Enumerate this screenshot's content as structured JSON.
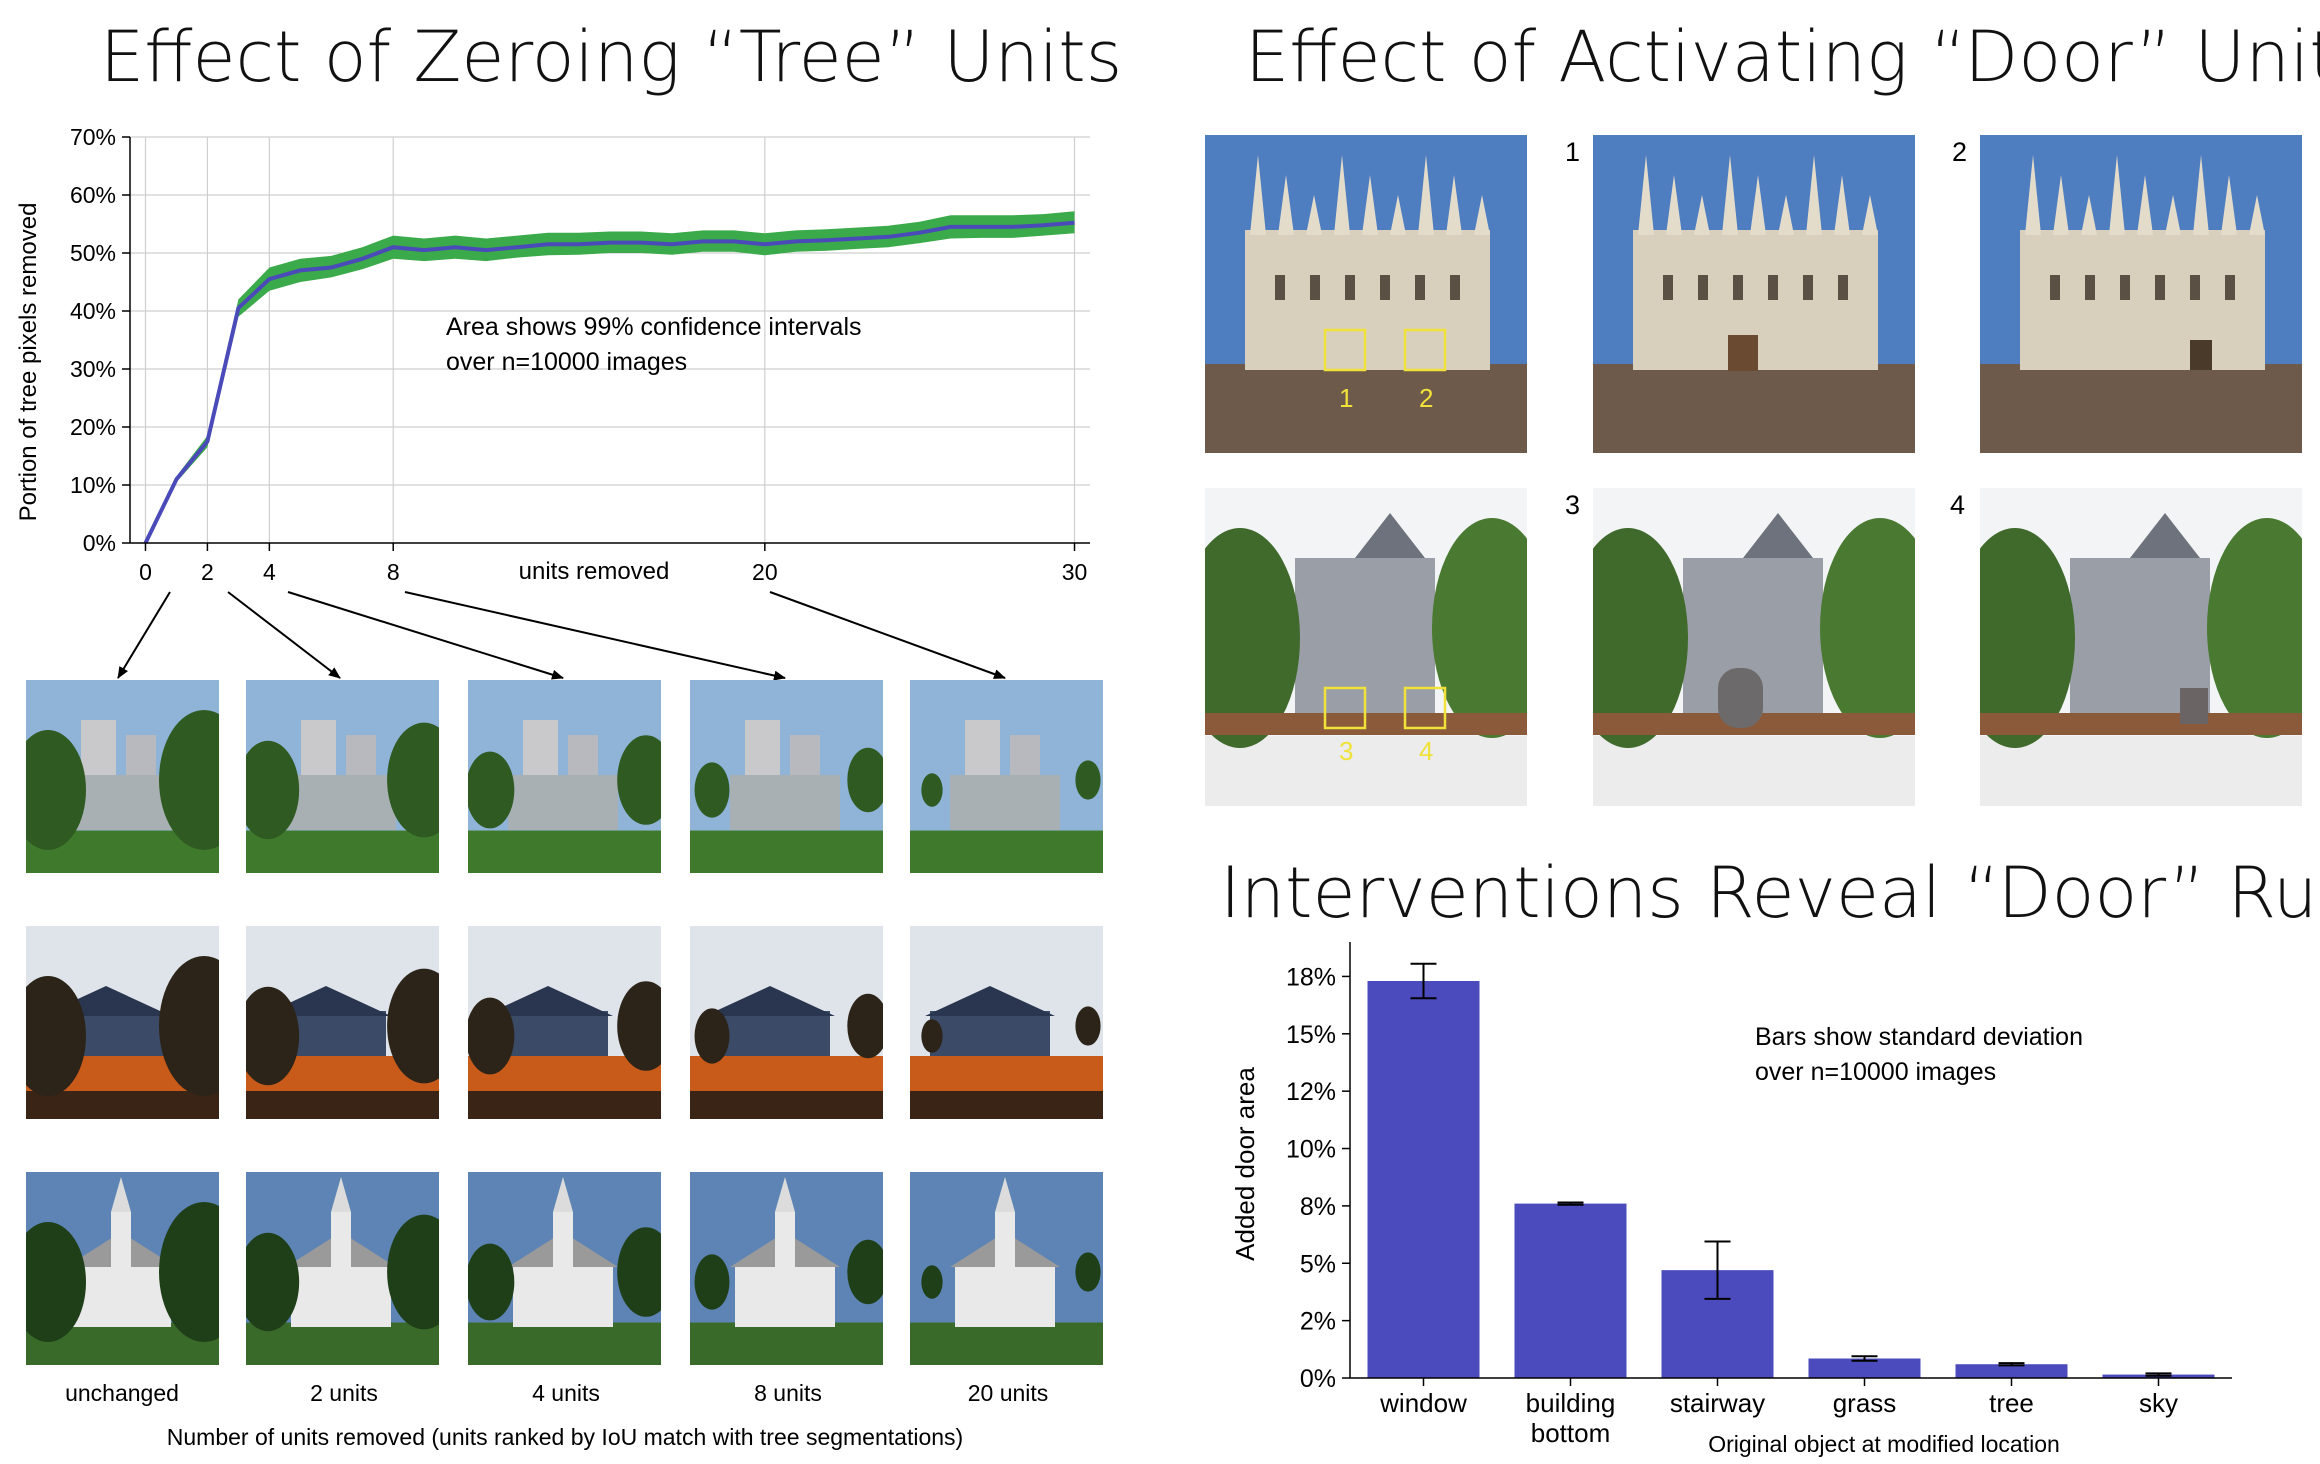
{
  "titles": {
    "left": "Effect of Zeroing “Tree” Units",
    "right": "Effect of Activating “Door” Units",
    "bar": "Interventions Reveal “Door” Rules"
  },
  "line_chart": {
    "ylabel": "Portion of tree pixels removed",
    "xlabel": "units removed",
    "annotation": [
      "Area shows 99% confidence intervals",
      "over n=10000 images"
    ],
    "yticks": [
      "0%",
      "10%",
      "20%",
      "30%",
      "40%",
      "50%",
      "60%",
      "70%"
    ],
    "xticks": [
      "0",
      "2",
      "4",
      "8",
      "20",
      "30"
    ]
  },
  "bar_chart": {
    "ylabel": "Added door area",
    "xlabel": "Original object at modified location",
    "annotation": [
      "Bars show standard deviation",
      "over n=10000 images"
    ],
    "yticks": [
      "0%",
      "2%",
      "5%",
      "8%",
      "10%",
      "12%",
      "15%",
      "18%"
    ],
    "categories": [
      "window",
      "building bottom",
      "stairway",
      "grass",
      "tree",
      "sky"
    ]
  },
  "thumbnails": {
    "captions": [
      "unchanged",
      "2 units",
      "4 units",
      "8 units",
      "20 units"
    ],
    "footer": "Number of units removed (units ranked by IoU match with tree segmentations)"
  },
  "door_panel": {
    "labels": [
      "1",
      "2",
      "3",
      "4"
    ]
  },
  "colors": {
    "line": "#4a4ab8",
    "band": "#3aaa4a",
    "bar": "#4b4bbd"
  },
  "chart_data": [
    {
      "type": "line",
      "title": "Effect of Zeroing “Tree” Units",
      "xlabel": "units removed",
      "ylabel": "Portion of tree pixels removed",
      "xlim": [
        -0.5,
        30.5
      ],
      "ylim": [
        0,
        0.7
      ],
      "grid": true,
      "series": [
        {
          "name": "",
          "x": [
            0,
            1,
            2,
            3,
            4,
            5,
            6,
            7,
            8,
            9,
            10,
            11,
            12,
            13,
            14,
            15,
            16,
            17,
            18,
            19,
            20,
            21,
            22,
            23,
            24,
            25,
            26,
            27,
            28,
            29,
            30
          ],
          "values": [
            0,
            0.11,
            0.175,
            0.405,
            0.455,
            0.47,
            0.475,
            0.49,
            0.51,
            0.505,
            0.51,
            0.505,
            0.51,
            0.515,
            0.515,
            0.518,
            0.518,
            0.515,
            0.52,
            0.52,
            0.515,
            0.52,
            0.522,
            0.525,
            0.528,
            0.535,
            0.545,
            0.545,
            0.545,
            0.548,
            0.552
          ],
          "lower": [
            0,
            0.105,
            0.165,
            0.39,
            0.435,
            0.45,
            0.458,
            0.472,
            0.49,
            0.486,
            0.49,
            0.486,
            0.492,
            0.496,
            0.497,
            0.5,
            0.5,
            0.497,
            0.502,
            0.502,
            0.496,
            0.502,
            0.504,
            0.507,
            0.51,
            0.517,
            0.525,
            0.526,
            0.526,
            0.53,
            0.534
          ],
          "upper": [
            0,
            0.115,
            0.185,
            0.42,
            0.475,
            0.49,
            0.495,
            0.51,
            0.53,
            0.525,
            0.53,
            0.525,
            0.53,
            0.535,
            0.535,
            0.537,
            0.537,
            0.534,
            0.539,
            0.539,
            0.534,
            0.539,
            0.541,
            0.544,
            0.547,
            0.554,
            0.565,
            0.565,
            0.565,
            0.567,
            0.572
          ]
        }
      ]
    },
    {
      "type": "bar",
      "title": "Interventions Reveal “Door” Rules",
      "xlabel": "Original object at modified location",
      "ylabel": "Added door area",
      "ylim": [
        0,
        0.19
      ],
      "categories": [
        "window",
        "building bottom",
        "stairway",
        "grass",
        "tree",
        "sky"
      ],
      "values": [
        0.173,
        0.076,
        0.047,
        0.0085,
        0.006,
        0.0015
      ],
      "error": [
        0.0075,
        0.0005,
        0.0125,
        0.001,
        0.0005,
        0.0005
      ]
    }
  ]
}
